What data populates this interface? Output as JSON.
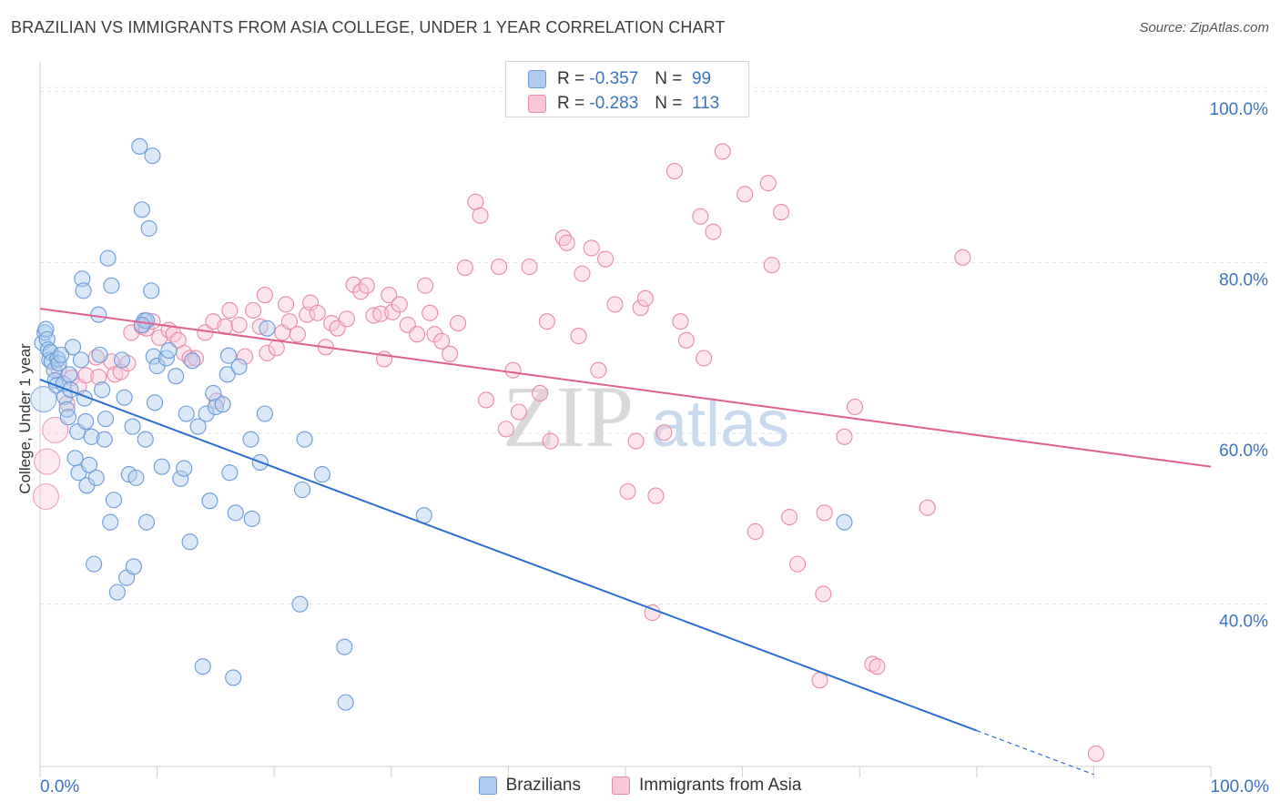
{
  "title": "BRAZILIAN VS IMMIGRANTS FROM ASIA COLLEGE, UNDER 1 YEAR CORRELATION CHART",
  "source": "Source: ZipAtlas.com",
  "watermark": {
    "zip": "ZIP",
    "atlas": "atlas"
  },
  "legend": [
    {
      "label": "Brazilians",
      "r_label": "R =",
      "r_value": "-0.357",
      "n_label": "N =",
      "n_value": "99",
      "fill": "#aecbef",
      "stroke": "#6a9bd8"
    },
    {
      "label": "Immigrants from Asia",
      "r_label": "R =",
      "r_value": "-0.283",
      "n_label": "N =",
      "n_value": "113",
      "fill": "#f8c6d6",
      "stroke": "#e88aa8"
    }
  ],
  "colors": {
    "blue_line": "#2b6fd1",
    "pink_line": "#e0608f",
    "grid": "#e2e2e2",
    "tick_label": "#3b72c4"
  },
  "chart_data": {
    "type": "scatter",
    "title": "BRAZILIAN VS IMMIGRANTS FROM ASIA COLLEGE, UNDER 1 YEAR CORRELATION CHART",
    "xlabel": "",
    "ylabel": "College, Under 1 year",
    "x_tick_labels": [
      "0.0%",
      "100.0%"
    ],
    "y_tick_labels": [
      "40.0%",
      "60.0%",
      "80.0%",
      "100.0%"
    ],
    "y_ticks": [
      40,
      60,
      80,
      100
    ],
    "xlim": [
      0,
      100
    ],
    "ylim": [
      21,
      102
    ],
    "grid": true,
    "series": [
      {
        "name": "Brazilians",
        "trend": {
          "x0": 0,
          "y0": 66.3,
          "x1": 80,
          "y1": 25.2,
          "dash_to_x": 90
        },
        "points": [
          [
            0.2,
            70.6
          ],
          [
            0.4,
            71.8
          ],
          [
            0.5,
            72.2
          ],
          [
            0.6,
            71.0
          ],
          [
            0.7,
            69.8
          ],
          [
            0.8,
            68.6
          ],
          [
            0.9,
            69.5
          ],
          [
            1.0,
            68.4
          ],
          [
            1.2,
            67.4
          ],
          [
            1.3,
            66.2
          ],
          [
            1.4,
            65.6
          ],
          [
            1.5,
            68.7
          ],
          [
            1.6,
            68.2
          ],
          [
            1.8,
            69.2
          ],
          [
            2.0,
            65.8
          ],
          [
            2.1,
            64.3
          ],
          [
            2.3,
            62.8
          ],
          [
            2.4,
            61.9
          ],
          [
            2.5,
            66.9
          ],
          [
            2.6,
            65.1
          ],
          [
            2.8,
            70.1
          ],
          [
            3.0,
            57.1
          ],
          [
            3.2,
            60.2
          ],
          [
            3.3,
            55.4
          ],
          [
            3.5,
            68.6
          ],
          [
            3.6,
            78.1
          ],
          [
            3.7,
            76.7
          ],
          [
            3.8,
            64.1
          ],
          [
            3.9,
            61.4
          ],
          [
            4.0,
            53.9
          ],
          [
            4.2,
            56.3
          ],
          [
            4.4,
            59.6
          ],
          [
            4.6,
            44.7
          ],
          [
            4.8,
            54.8
          ],
          [
            5.0,
            73.9
          ],
          [
            5.1,
            69.2
          ],
          [
            5.3,
            65.1
          ],
          [
            5.5,
            59.3
          ],
          [
            5.6,
            61.7
          ],
          [
            5.8,
            80.5
          ],
          [
            6.0,
            49.6
          ],
          [
            6.1,
            77.3
          ],
          [
            6.3,
            52.2
          ],
          [
            6.6,
            41.4
          ],
          [
            7.0,
            68.6
          ],
          [
            7.2,
            64.2
          ],
          [
            7.4,
            43.1
          ],
          [
            7.6,
            55.2
          ],
          [
            7.9,
            60.8
          ],
          [
            8.0,
            44.4
          ],
          [
            8.2,
            54.8
          ],
          [
            8.5,
            93.6
          ],
          [
            8.7,
            86.2
          ],
          [
            8.9,
            73.2
          ],
          [
            9.0,
            59.3
          ],
          [
            9.1,
            49.6
          ],
          [
            9.3,
            84.0
          ],
          [
            9.5,
            76.7
          ],
          [
            9.6,
            92.5
          ],
          [
            9.7,
            69.0
          ],
          [
            9.8,
            63.6
          ],
          [
            10.0,
            67.9
          ],
          [
            10.4,
            56.1
          ],
          [
            10.8,
            68.8
          ],
          [
            11.0,
            69.7
          ],
          [
            11.6,
            66.7
          ],
          [
            12.0,
            54.7
          ],
          [
            12.3,
            55.9
          ],
          [
            12.5,
            62.3
          ],
          [
            12.8,
            47.3
          ],
          [
            13.0,
            68.5
          ],
          [
            13.5,
            60.8
          ],
          [
            13.9,
            32.7
          ],
          [
            14.2,
            62.3
          ],
          [
            14.5,
            52.1
          ],
          [
            14.8,
            64.7
          ],
          [
            15.0,
            63.1
          ],
          [
            15.6,
            63.4
          ],
          [
            16.0,
            66.9
          ],
          [
            16.1,
            69.1
          ],
          [
            16.2,
            55.4
          ],
          [
            16.5,
            31.4
          ],
          [
            16.7,
            50.7
          ],
          [
            17.0,
            67.8
          ],
          [
            18.0,
            59.3
          ],
          [
            18.1,
            50.0
          ],
          [
            18.8,
            56.6
          ],
          [
            19.2,
            62.3
          ],
          [
            19.4,
            72.3
          ],
          [
            22.2,
            40.0
          ],
          [
            22.4,
            53.4
          ],
          [
            22.6,
            59.3
          ],
          [
            24.1,
            55.2
          ],
          [
            26.0,
            35.0
          ],
          [
            26.1,
            28.5
          ],
          [
            32.8,
            50.4
          ],
          [
            68.7,
            49.6
          ],
          [
            9.1,
            73.2
          ],
          [
            8.7,
            72.7
          ]
        ],
        "big_points": [
          [
            0.3,
            64.0
          ]
        ]
      },
      {
        "name": "Immigrants from Asia",
        "trend": {
          "x0": 0,
          "y0": 74.6,
          "x1": 100,
          "y1": 56.1
        },
        "points": [
          [
            1.6,
            67.4
          ],
          [
            2.3,
            63.5
          ],
          [
            2.7,
            66.5
          ],
          [
            3.3,
            65.5
          ],
          [
            3.9,
            66.8
          ],
          [
            5.0,
            66.6
          ],
          [
            6.1,
            68.4
          ],
          [
            6.4,
            66.9
          ],
          [
            6.9,
            67.2
          ],
          [
            7.5,
            68.2
          ],
          [
            7.8,
            71.8
          ],
          [
            8.7,
            72.5
          ],
          [
            9.1,
            72.3
          ],
          [
            9.6,
            73.1
          ],
          [
            10.2,
            71.2
          ],
          [
            11.0,
            72.1
          ],
          [
            11.4,
            71.6
          ],
          [
            11.8,
            70.9
          ],
          [
            12.3,
            69.4
          ],
          [
            12.8,
            68.8
          ],
          [
            13.3,
            68.8
          ],
          [
            14.1,
            71.8
          ],
          [
            14.8,
            73.1
          ],
          [
            15.1,
            63.8
          ],
          [
            15.8,
            72.5
          ],
          [
            16.2,
            74.4
          ],
          [
            17.0,
            72.7
          ],
          [
            17.5,
            69.0
          ],
          [
            18.2,
            74.4
          ],
          [
            18.8,
            72.5
          ],
          [
            19.2,
            76.2
          ],
          [
            19.4,
            69.4
          ],
          [
            20.2,
            70.0
          ],
          [
            20.7,
            71.8
          ],
          [
            21.0,
            75.1
          ],
          [
            21.3,
            73.1
          ],
          [
            22.0,
            71.6
          ],
          [
            22.8,
            73.9
          ],
          [
            23.1,
            75.3
          ],
          [
            23.7,
            74.1
          ],
          [
            24.4,
            70.1
          ],
          [
            24.9,
            72.9
          ],
          [
            25.4,
            72.3
          ],
          [
            26.2,
            73.4
          ],
          [
            26.8,
            77.4
          ],
          [
            27.4,
            76.6
          ],
          [
            27.9,
            77.3
          ],
          [
            28.5,
            73.8
          ],
          [
            29.1,
            74.0
          ],
          [
            29.4,
            68.7
          ],
          [
            29.8,
            76.2
          ],
          [
            30.1,
            74.2
          ],
          [
            30.7,
            75.1
          ],
          [
            31.4,
            72.7
          ],
          [
            32.2,
            71.6
          ],
          [
            32.9,
            77.3
          ],
          [
            33.3,
            74.1
          ],
          [
            33.7,
            71.6
          ],
          [
            34.3,
            70.8
          ],
          [
            35.0,
            69.3
          ],
          [
            35.7,
            72.9
          ],
          [
            36.3,
            79.4
          ],
          [
            37.2,
            87.1
          ],
          [
            37.6,
            85.5
          ],
          [
            38.1,
            63.9
          ],
          [
            39.2,
            79.5
          ],
          [
            39.8,
            60.5
          ],
          [
            40.4,
            67.4
          ],
          [
            40.9,
            62.5
          ],
          [
            41.8,
            79.5
          ],
          [
            42.7,
            64.7
          ],
          [
            43.3,
            73.1
          ],
          [
            43.6,
            59.1
          ],
          [
            44.7,
            82.9
          ],
          [
            45.0,
            82.3
          ],
          [
            46.0,
            71.4
          ],
          [
            46.3,
            78.7
          ],
          [
            47.1,
            81.7
          ],
          [
            47.7,
            67.4
          ],
          [
            48.3,
            80.4
          ],
          [
            49.1,
            75.1
          ],
          [
            50.2,
            53.2
          ],
          [
            50.9,
            59.1
          ],
          [
            51.3,
            74.7
          ],
          [
            51.7,
            75.8
          ],
          [
            52.3,
            39.0
          ],
          [
            52.6,
            52.7
          ],
          [
            53.3,
            60.1
          ],
          [
            54.2,
            90.7
          ],
          [
            54.7,
            73.1
          ],
          [
            55.2,
            70.9
          ],
          [
            56.4,
            85.4
          ],
          [
            56.7,
            68.8
          ],
          [
            57.5,
            83.6
          ],
          [
            58.3,
            93.0
          ],
          [
            60.2,
            88.0
          ],
          [
            61.1,
            48.5
          ],
          [
            62.2,
            89.3
          ],
          [
            62.5,
            79.7
          ],
          [
            63.3,
            85.9
          ],
          [
            64.0,
            50.2
          ],
          [
            64.7,
            44.7
          ],
          [
            66.6,
            31.1
          ],
          [
            66.9,
            41.2
          ],
          [
            67.0,
            50.7
          ],
          [
            68.7,
            59.6
          ],
          [
            69.6,
            63.1
          ],
          [
            71.1,
            33.0
          ],
          [
            71.5,
            32.7
          ],
          [
            75.8,
            51.3
          ],
          [
            78.8,
            80.6
          ],
          [
            90.2,
            22.5
          ],
          [
            4.8,
            68.9
          ]
        ],
        "big_points": [
          [
            0.6,
            56.7
          ],
          [
            1.3,
            60.4
          ],
          [
            0.5,
            52.6
          ]
        ]
      }
    ]
  }
}
